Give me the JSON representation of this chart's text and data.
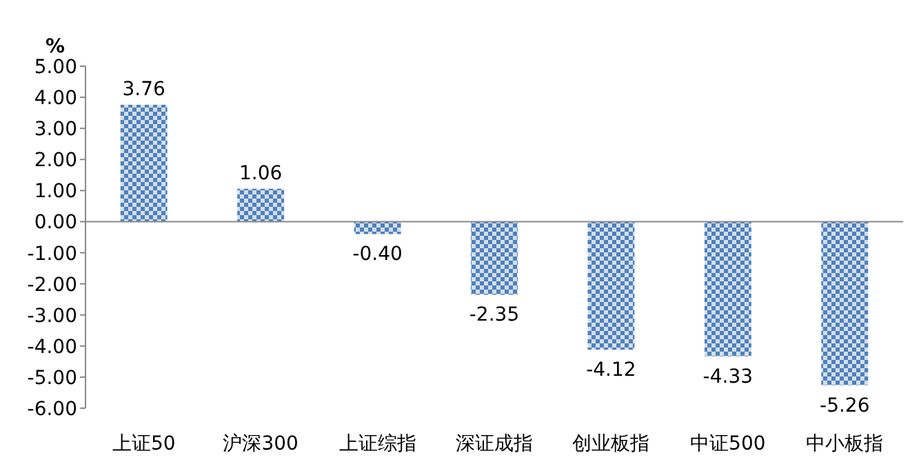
{
  "chart_data": {
    "type": "bar",
    "ylabel": "%",
    "categories": [
      "上证50",
      "沪深300",
      "上证综指",
      "深证成指",
      "创业板指",
      "中证500",
      "中小板指"
    ],
    "values": [
      3.76,
      1.06,
      -0.4,
      -2.35,
      -4.12,
      -4.33,
      -5.26
    ],
    "value_labels": [
      "3.76",
      "1.06",
      "-0.40",
      "-2.35",
      "-4.12",
      "-4.33",
      "-5.26"
    ],
    "color": "#4f81bd",
    "ylim": [
      -6,
      5
    ],
    "yticks": [
      {
        "value": 5,
        "label": "5.00"
      },
      {
        "value": 4,
        "label": "4.00"
      },
      {
        "value": 3,
        "label": "3.00"
      },
      {
        "value": 2,
        "label": "2.00"
      },
      {
        "value": 1,
        "label": "1.00"
      },
      {
        "value": 0,
        "label": "0.00"
      },
      {
        "value": -1,
        "label": "-1.00"
      },
      {
        "value": -2,
        "label": "-2.00"
      },
      {
        "value": -3,
        "label": "-3.00"
      },
      {
        "value": -4,
        "label": "-4.00"
      },
      {
        "value": -5,
        "label": "-5.00"
      },
      {
        "value": -6,
        "label": "-6.00"
      }
    ],
    "data_labels": false
  }
}
